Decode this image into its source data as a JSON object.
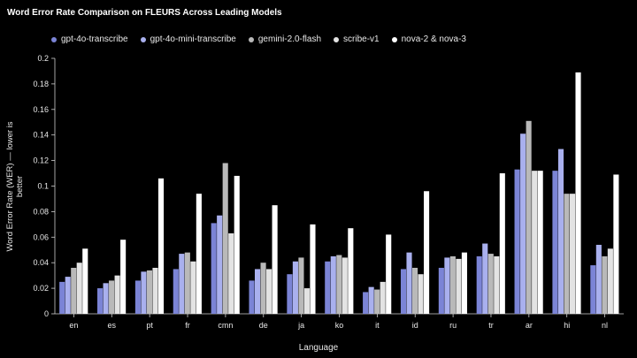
{
  "chart_data": {
    "type": "bar",
    "title": "Word Error Rate Comparison on FLEURS Across Leading Models",
    "xlabel": "Language",
    "ylabel": "Word Error Rate (WER) — lower is better",
    "ylim": [
      0,
      0.2
    ],
    "yticks": [
      "0",
      "0.02",
      "0.04",
      "0.06",
      "0.08",
      "0.1",
      "0.12",
      "0.14",
      "0.16",
      "0.18",
      "0.2"
    ],
    "categories": [
      "en",
      "es",
      "pt",
      "fr",
      "cmn",
      "de",
      "ja",
      "ko",
      "it",
      "id",
      "ru",
      "tr",
      "ar",
      "hi",
      "nl"
    ],
    "legend_position": "top-left",
    "grid": false,
    "series": [
      {
        "name": "gpt-4o-transcribe",
        "color": "#7b84d6",
        "values": [
          0.025,
          0.02,
          0.026,
          0.035,
          0.071,
          0.026,
          0.031,
          0.041,
          0.017,
          0.035,
          0.036,
          0.045,
          0.113,
          0.112,
          0.038
        ]
      },
      {
        "name": "gpt-4o-mini-transcribe",
        "color": "#a9b0ee",
        "values": [
          0.029,
          0.024,
          0.033,
          0.047,
          0.077,
          0.035,
          0.041,
          0.045,
          0.021,
          0.048,
          0.044,
          0.055,
          0.141,
          0.129,
          0.054
        ]
      },
      {
        "name": "gemini-2.0-flash",
        "color": "#b9b9b9",
        "values": [
          0.036,
          0.026,
          0.034,
          0.048,
          0.118,
          0.04,
          0.044,
          0.046,
          0.019,
          0.036,
          0.045,
          0.047,
          0.151,
          0.094,
          0.045
        ]
      },
      {
        "name": "scribe-v1",
        "color": "#e3e3e3",
        "values": [
          0.04,
          0.03,
          0.036,
          0.041,
          0.063,
          0.035,
          0.02,
          0.044,
          0.025,
          0.031,
          0.043,
          0.045,
          0.112,
          0.094,
          0.051
        ]
      },
      {
        "name": "nova-2 & nova-3",
        "color": "#ffffff",
        "values": [
          0.051,
          0.058,
          0.106,
          0.094,
          0.108,
          0.085,
          0.07,
          0.067,
          0.062,
          0.096,
          0.048,
          0.11,
          0.112,
          0.189,
          0.109
        ]
      }
    ]
  }
}
